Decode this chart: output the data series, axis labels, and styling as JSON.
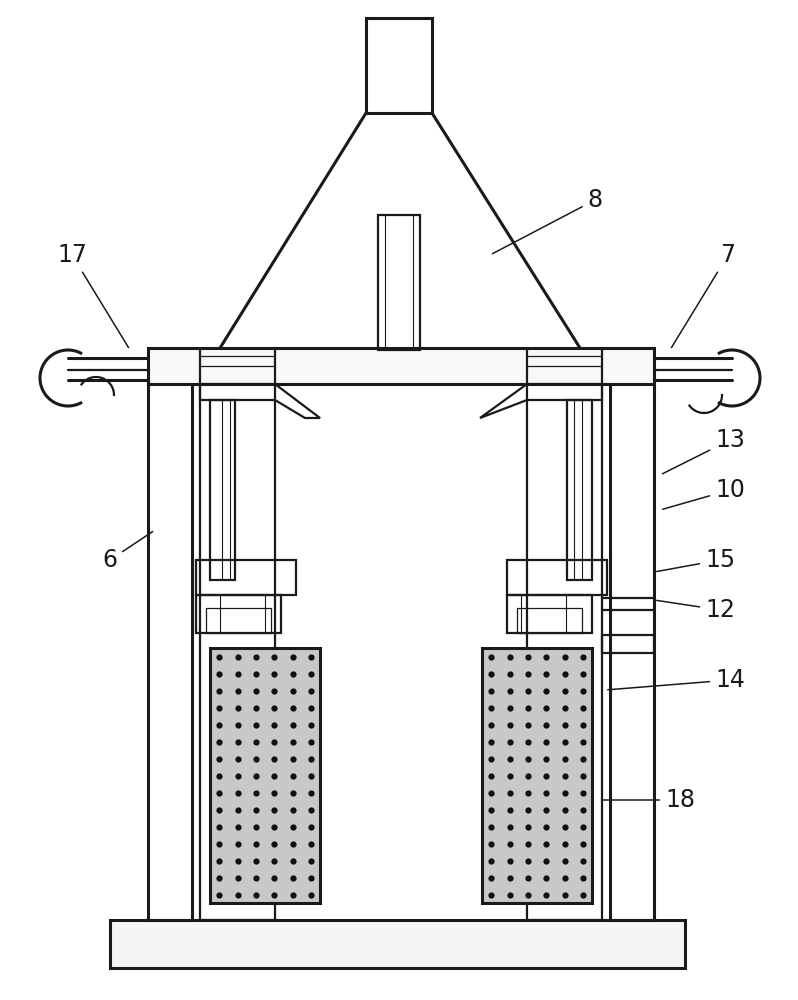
{
  "bg": "#ffffff",
  "lc": "#1a1a1a",
  "lw": 1.6,
  "tlw": 2.2,
  "fig_w": 7.98,
  "fig_h": 10.0
}
